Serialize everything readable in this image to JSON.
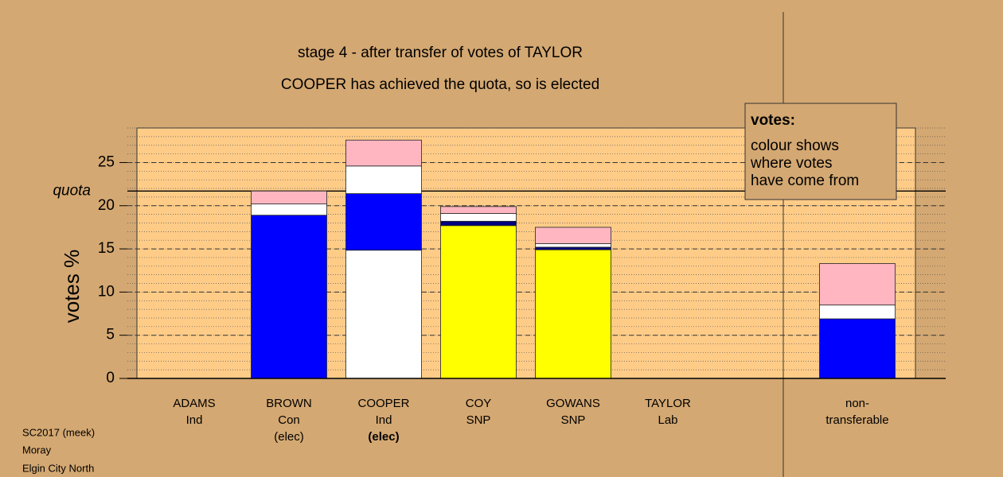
{
  "chart_data": {
    "type": "stacked-bar",
    "title": "stage 4 - after transfer of votes of TAYLOR",
    "subtitle": "COOPER has achieved the quota, so is elected",
    "y_label": "votes %",
    "quota_label": "quota",
    "quota": 21.7,
    "categories": [
      [
        "ADAMS",
        "Ind"
      ],
      [
        "BROWN",
        "Con",
        "(elec)"
      ],
      [
        "COOPER",
        "Ind",
        "(elec)"
      ],
      [
        "COY",
        "SNP"
      ],
      [
        "GOWANS",
        "SNP"
      ],
      [
        "TAYLOR",
        "Lab"
      ],
      [
        "non-",
        "transferable"
      ]
    ],
    "stacks": [
      [],
      [
        {
          "color": "#0000ff",
          "value": 18.9
        },
        {
          "color": "#ffffff",
          "value": 1.3
        },
        {
          "color": "#ffb6c1",
          "value": 1.5
        }
      ],
      [
        {
          "color": "#ffffff",
          "value": 14.85
        },
        {
          "color": "#0000ff",
          "value": 6.55
        },
        {
          "color": "#ffffff",
          "value": 3.2
        },
        {
          "color": "#ffb6c1",
          "value": 3.0
        }
      ],
      [
        {
          "color": "#ffff00",
          "value": 17.7
        },
        {
          "color": "#000080",
          "value": 0.5
        },
        {
          "color": "#ffffff",
          "value": 0.9
        },
        {
          "color": "#ffb6c1",
          "value": 0.8
        }
      ],
      [
        {
          "color": "#ffff00",
          "value": 14.9
        },
        {
          "color": "#000080",
          "value": 0.3
        },
        {
          "color": "#ffffff",
          "value": 0.4
        },
        {
          "color": "#ffb6c1",
          "value": 1.9
        }
      ],
      [],
      [
        {
          "color": "#0000ff",
          "value": 6.9
        },
        {
          "color": "#ffffff",
          "value": 1.6
        },
        {
          "color": "#ffb6c1",
          "value": 4.8
        }
      ]
    ],
    "ylim": [
      0,
      29
    ],
    "yticks": [
      0,
      5,
      10,
      15,
      20,
      25
    ],
    "minor_grid_step": 1,
    "grid": true,
    "legend": {
      "title": "votes:",
      "lines": [
        "colour shows",
        "where votes",
        "have come from"
      ]
    },
    "footer": [
      "SC2017 (meek)",
      "Moray",
      "Elgin City North"
    ]
  }
}
